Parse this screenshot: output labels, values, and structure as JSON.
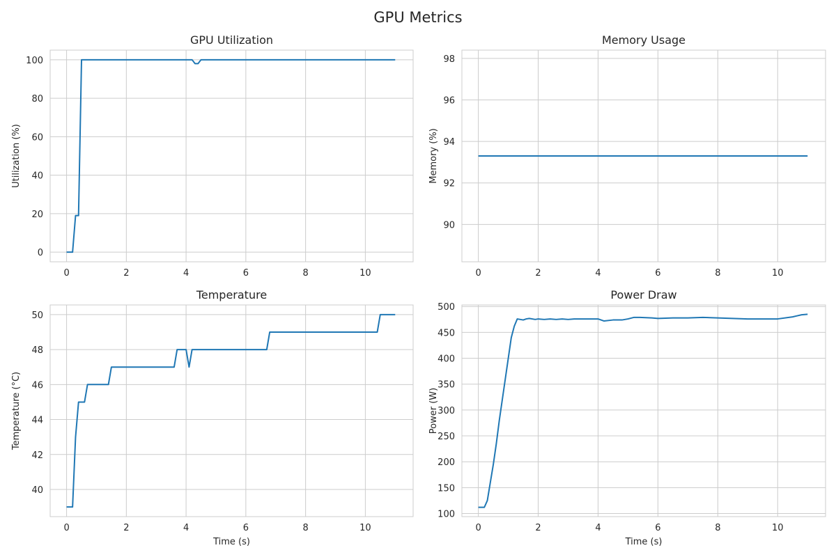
{
  "figure_title": "GPU Metrics",
  "line_color": "#1f77b4",
  "grid_color": "#cccccc",
  "chart_data": [
    {
      "type": "line",
      "title": "GPU Utilization",
      "xlabel": "",
      "ylabel": "Utilization (%)",
      "xlim": [
        -0.55,
        11.6
      ],
      "ylim": [
        -5,
        105
      ],
      "xticks": [
        0,
        2,
        4,
        6,
        8,
        10
      ],
      "yticks": [
        0,
        20,
        40,
        60,
        80,
        100
      ],
      "grid": true,
      "x": [
        0,
        0.2,
        0.3,
        0.4,
        0.5,
        4.2,
        4.3,
        4.4,
        4.5,
        11
      ],
      "y": [
        0,
        0,
        19,
        19,
        100,
        100,
        98,
        98,
        100,
        100
      ]
    },
    {
      "type": "line",
      "title": "Memory Usage",
      "xlabel": "",
      "ylabel": "Memory (%)",
      "xlim": [
        -0.55,
        11.6
      ],
      "ylim": [
        88.2,
        98.4
      ],
      "xticks": [
        0,
        2,
        4,
        6,
        8,
        10
      ],
      "yticks": [
        90,
        92,
        94,
        96,
        98
      ],
      "grid": true,
      "x": [
        0,
        11
      ],
      "y": [
        93.3,
        93.3
      ]
    },
    {
      "type": "line",
      "title": "Temperature",
      "xlabel": "Time (s)",
      "ylabel": "Temperature (°C)",
      "xlim": [
        -0.55,
        11.6
      ],
      "ylim": [
        38.45,
        50.55
      ],
      "xticks": [
        0,
        2,
        4,
        6,
        8,
        10
      ],
      "yticks": [
        40,
        42,
        44,
        46,
        48,
        50
      ],
      "grid": true,
      "x": [
        0,
        0.2,
        0.3,
        0.4,
        0.6,
        0.7,
        1.4,
        1.5,
        3.6,
        3.7,
        4.0,
        4.1,
        4.2,
        6.7,
        6.8,
        10.4,
        10.5,
        11
      ],
      "y": [
        39,
        39,
        43,
        45,
        45,
        46,
        46,
        47,
        47,
        48,
        48,
        47,
        48,
        48,
        49,
        49,
        50,
        50
      ]
    },
    {
      "type": "line",
      "title": "Power Draw",
      "xlabel": "Time (s)",
      "ylabel": "Power (W)",
      "xlim": [
        -0.55,
        11.6
      ],
      "ylim": [
        94,
        503
      ],
      "xticks": [
        0,
        2,
        4,
        6,
        8,
        10
      ],
      "yticks": [
        100,
        150,
        200,
        250,
        300,
        350,
        400,
        450,
        500
      ],
      "grid": true,
      "x": [
        0,
        0.2,
        0.3,
        0.4,
        0.5,
        0.6,
        0.7,
        0.8,
        0.9,
        1.0,
        1.1,
        1.2,
        1.3,
        1.5,
        1.6,
        1.7,
        1.9,
        2.0,
        2.2,
        2.4,
        2.6,
        2.8,
        3.0,
        3.2,
        3.4,
        3.6,
        3.8,
        4.0,
        4.2,
        4.5,
        4.8,
        5.0,
        5.2,
        5.4,
        5.8,
        6.0,
        6.5,
        7.0,
        7.5,
        8.0,
        8.5,
        9.0,
        9.5,
        10.0,
        10.5,
        10.8,
        11.0
      ],
      "y": [
        112,
        112,
        125,
        160,
        195,
        235,
        280,
        320,
        360,
        400,
        440,
        462,
        476,
        474,
        476,
        477,
        475,
        476,
        475,
        476,
        475,
        476,
        475,
        476,
        476,
        476,
        476,
        476,
        472,
        474,
        474,
        476,
        479,
        479,
        478,
        477,
        478,
        478,
        479,
        478,
        477,
        476,
        476,
        476,
        480,
        484,
        485
      ]
    }
  ]
}
